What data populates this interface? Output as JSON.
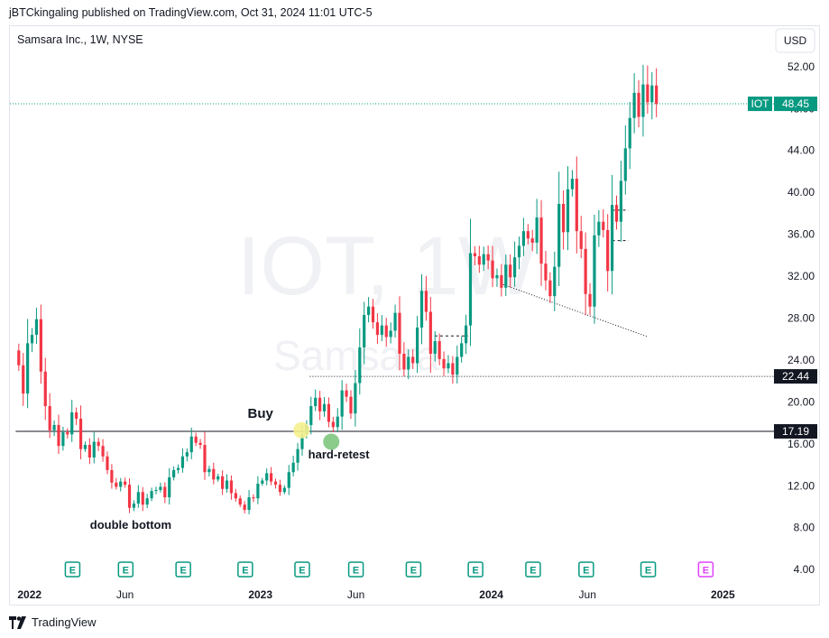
{
  "header": {
    "published_by": "jBTCkingaling published on TradingView.com, Oct 31, 2024 11:01 UTC-5"
  },
  "footer": {
    "brand": "TradingView"
  },
  "chart_data": {
    "type": "candlestick",
    "title": "Samsara Inc., 1W, NYSE",
    "watermark": {
      "symbol": "IOT, 1W",
      "name": "Samsara"
    },
    "currency_button": "USD",
    "ylim": [
      3.5,
      55
    ],
    "y_ticks": [
      4,
      8,
      12,
      16,
      20,
      24,
      28,
      32,
      36,
      40,
      44,
      48,
      52
    ],
    "x_ticks": [
      {
        "label": "2022",
        "date": "2022-01-01"
      },
      {
        "label": "Jun",
        "date": "2022-06-01"
      },
      {
        "label": "2023",
        "date": "2023-01-01"
      },
      {
        "label": "Jun",
        "date": "2023-06-01"
      },
      {
        "label": "2024",
        "date": "2024-01-01"
      },
      {
        "label": "Jun",
        "date": "2024-06-01"
      },
      {
        "label": "2025",
        "date": "2025-01-01"
      }
    ],
    "x_range": [
      "2021-12-01",
      "2025-03-20"
    ],
    "last_price": {
      "symbol": "IOT",
      "value": "48.45",
      "color": "#089981"
    },
    "price_labels": [
      {
        "value": "22.44"
      },
      {
        "value": "17.19"
      }
    ],
    "horizontal_lines": [
      {
        "value": 17.19,
        "style": "solid",
        "from": "2021-12-10"
      },
      {
        "value": 22.44,
        "style": "dotted",
        "from": "2023-03-20"
      }
    ],
    "trendline": {
      "from": [
        "2024-01-20",
        31.2
      ],
      "to": [
        "2024-09-05",
        26.2
      ]
    },
    "dashed_segments": [
      {
        "value": 26.3,
        "from": "2023-09-25",
        "to": "2023-11-25"
      },
      {
        "value": 38.3,
        "from": "2024-07-10",
        "to": "2024-08-05"
      },
      {
        "value": 35.4,
        "from": "2024-07-10",
        "to": "2024-08-05"
      }
    ],
    "annotations": [
      {
        "text": "Buy",
        "date": "2023-01-01",
        "value": 18.5,
        "bold": true
      },
      {
        "text": "double bottom",
        "date": "2022-06-10",
        "value": 7.9,
        "bold": true
      },
      {
        "text": "hard-retest",
        "date": "2023-05-05",
        "value": 14.6,
        "bold": true
      }
    ],
    "markers": [
      {
        "type": "circle",
        "date": "2023-03-07",
        "value": 17.3,
        "color": "#f6ef8e"
      },
      {
        "type": "circle",
        "date": "2023-04-23",
        "value": 16.2,
        "color": "#7ec77e"
      }
    ],
    "earnings": [
      {
        "date": "2022-03-10",
        "label": "E"
      },
      {
        "date": "2022-06-02",
        "label": "E"
      },
      {
        "date": "2022-09-01",
        "label": "E"
      },
      {
        "date": "2022-12-08",
        "label": "E"
      },
      {
        "date": "2023-03-08",
        "label": "E"
      },
      {
        "date": "2023-06-01",
        "label": "E"
      },
      {
        "date": "2023-08-31",
        "label": "E"
      },
      {
        "date": "2023-12-07",
        "label": "E"
      },
      {
        "date": "2024-03-07",
        "label": "E"
      },
      {
        "date": "2024-05-30",
        "label": "E"
      },
      {
        "date": "2024-09-05",
        "label": "E"
      },
      {
        "date": "2024-12-05",
        "label": "E",
        "upcoming": true
      }
    ],
    "colors": {
      "up": "#089981",
      "down": "#f23645",
      "upcoming": "#e040fb"
    },
    "closes": [
      23.5,
      20.8,
      25.6,
      26.4,
      27.9,
      22.9,
      19.6,
      17.3,
      17.8,
      15.8,
      17.1,
      16.9,
      19.0,
      18.4,
      15.5,
      15.9,
      14.7,
      16.2,
      15.8,
      14.8,
      13.5,
      12.3,
      11.9,
      12.4,
      12.1,
      9.9,
      10.3,
      11.4,
      10.2,
      10.8,
      11.5,
      11.6,
      11.9,
      10.9,
      12.8,
      13.5,
      13.7,
      14.8,
      15.2,
      16.7,
      16.1,
      15.9,
      13.3,
      13.6,
      12.6,
      12.9,
      11.7,
      12.5,
      11.3,
      10.8,
      10.2,
      9.7,
      10.9,
      10.8,
      12.2,
      12.5,
      13.2,
      12.4,
      12.1,
      11.4,
      11.8,
      13.3,
      14.2,
      15.5,
      16.9,
      17.8,
      19.6,
      20.4,
      19.1,
      19.8,
      18.1,
      17.6,
      18.6,
      21.1,
      20.5,
      18.9,
      21.8,
      25.2,
      28.3,
      29.1,
      27.6,
      26.4,
      27.3,
      26.2,
      26.8,
      28.5,
      24.6,
      23.1,
      24.3,
      23.7,
      27.1,
      30.6,
      28.6,
      24.6,
      25.8,
      24.1,
      23.2,
      23.7,
      22.6,
      24.3,
      25.6,
      27.3,
      34.2,
      33.9,
      33.1,
      34.1,
      33.5,
      31.8,
      32.1,
      30.9,
      33.1,
      31.9,
      33.8,
      34.9,
      36.3,
      35.6,
      35.2,
      37.6,
      33.2,
      31.6,
      30.1,
      32.9,
      38.9,
      36.2,
      40.3,
      41.3,
      36.3,
      34.6,
      30.3,
      29.1,
      35.9,
      37.2,
      36.4,
      32.5,
      38.8,
      37.2,
      41.1,
      44.2,
      47.1,
      49.5,
      47.2,
      50.3,
      48.6,
      50.2,
      48.45
    ]
  }
}
